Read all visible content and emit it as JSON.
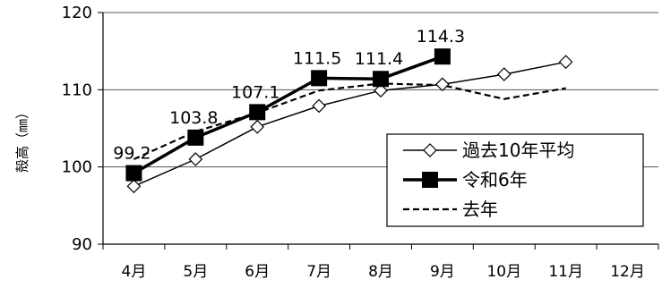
{
  "chart_data": {
    "type": "line",
    "categories": [
      "4月",
      "5月",
      "6月",
      "7月",
      "8月",
      "9月",
      "10月",
      "11月",
      "12月"
    ],
    "ylabel": "殻高（㎜）",
    "ylim": [
      90,
      120
    ],
    "yticks": [
      "90",
      "100",
      "110",
      "120"
    ],
    "grid": true,
    "legend_position": "right",
    "series": [
      {
        "name": "過去10年平均",
        "style": "thin-line-open-diamond",
        "color": "#000000",
        "values": [
          97.5,
          101.0,
          105.2,
          107.9,
          109.9,
          110.7,
          112.0,
          113.6,
          null
        ]
      },
      {
        "name": "令和6年",
        "style": "thick-line-filled-square",
        "color": "#000000",
        "values": [
          99.2,
          103.8,
          107.1,
          111.5,
          111.4,
          114.3,
          null,
          null,
          null
        ],
        "data_labels": [
          "99.2",
          "103.8",
          "107.1",
          "111.5",
          "111.4",
          "114.3"
        ]
      },
      {
        "name": "去年",
        "style": "dashed-line",
        "color": "#000000",
        "values": [
          101.0,
          104.6,
          107.0,
          109.9,
          110.8,
          110.6,
          108.8,
          110.2,
          null
        ]
      }
    ]
  }
}
